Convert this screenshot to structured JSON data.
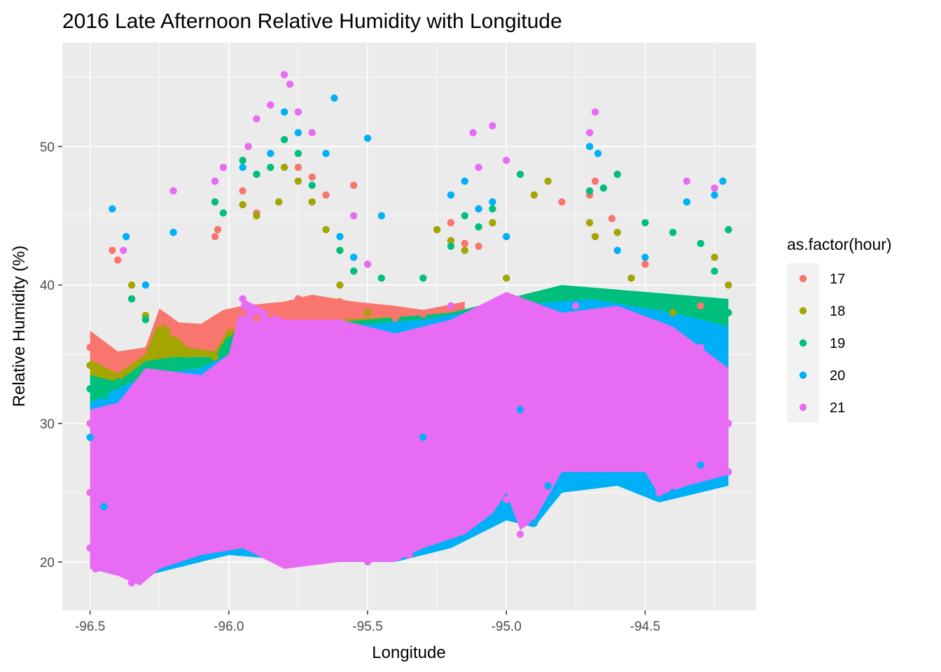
{
  "chart_data": {
    "type": "scatter",
    "title": "2016 Late Afternoon Relative Humidity with Longitude",
    "xlabel": "Longitude",
    "ylabel": "Relative Humidity (%)",
    "xlim": [
      -96.6,
      -94.1
    ],
    "ylim": [
      16.5,
      57.5
    ],
    "x_ticks": [
      -96.5,
      -96.0,
      -95.5,
      -95.0,
      -94.5
    ],
    "x_tick_labels": [
      "-96.5",
      "-96.0",
      "-95.5",
      "-95.0",
      "-94.5"
    ],
    "y_ticks": [
      20,
      30,
      40,
      50
    ],
    "y_tick_labels": [
      "20",
      "30",
      "40",
      "50"
    ],
    "grid": true,
    "legend": {
      "title": "as.factor(hour)",
      "position": "right"
    },
    "series": [
      {
        "name": "17",
        "color": "#F8766D",
        "points": [
          [
            -96.5,
            35.5
          ],
          [
            -96.45,
            34.8
          ],
          [
            -96.4,
            34.0
          ],
          [
            -96.25,
            37.2
          ],
          [
            -96.2,
            36.5
          ],
          [
            -96.15,
            35.8
          ],
          [
            -96.1,
            36.4
          ],
          [
            -96.05,
            36.8
          ],
          [
            -96.0,
            37.8
          ],
          [
            -95.95,
            38.0
          ],
          [
            -95.9,
            37.6
          ],
          [
            -95.85,
            37.9
          ],
          [
            -95.8,
            38.4
          ],
          [
            -95.75,
            39.0
          ],
          [
            -95.7,
            38.6
          ],
          [
            -95.6,
            38.8
          ],
          [
            -95.5,
            38.2
          ],
          [
            -95.4,
            37.6
          ],
          [
            -95.3,
            37.9
          ],
          [
            -95.2,
            38.4
          ],
          [
            -96.42,
            42.5
          ],
          [
            -96.4,
            41.8
          ],
          [
            -96.05,
            43.5
          ],
          [
            -96.04,
            44.0
          ],
          [
            -95.95,
            46.8
          ],
          [
            -95.9,
            45.2
          ],
          [
            -95.82,
            46.0
          ],
          [
            -95.75,
            48.5
          ],
          [
            -95.7,
            47.8
          ],
          [
            -95.65,
            46.5
          ],
          [
            -95.55,
            47.2
          ],
          [
            -95.2,
            44.5
          ],
          [
            -95.15,
            43.0
          ],
          [
            -95.1,
            42.8
          ],
          [
            -94.8,
            46.0
          ],
          [
            -94.7,
            46.5
          ],
          [
            -94.68,
            47.5
          ],
          [
            -94.62,
            44.8
          ],
          [
            -94.5,
            41.5
          ],
          [
            -94.3,
            38.5
          ]
        ]
      },
      {
        "name": "18",
        "color": "#A3A500",
        "points": [
          [
            -96.5,
            34.2
          ],
          [
            -96.45,
            33.5
          ],
          [
            -96.4,
            33.2
          ],
          [
            -96.35,
            40.0
          ],
          [
            -96.3,
            37.8
          ],
          [
            -96.25,
            36.5
          ],
          [
            -96.15,
            35.0
          ],
          [
            -96.05,
            34.8
          ],
          [
            -96.0,
            36.5
          ],
          [
            -95.95,
            45.8
          ],
          [
            -95.9,
            45.0
          ],
          [
            -95.82,
            46.0
          ],
          [
            -95.8,
            48.5
          ],
          [
            -95.75,
            47.5
          ],
          [
            -95.7,
            46.0
          ],
          [
            -95.65,
            44.0
          ],
          [
            -95.6,
            40.0
          ],
          [
            -95.5,
            38.0
          ],
          [
            -95.25,
            44.0
          ],
          [
            -95.2,
            43.2
          ],
          [
            -95.15,
            42.5
          ],
          [
            -95.05,
            44.5
          ],
          [
            -95.0,
            40.5
          ],
          [
            -94.9,
            46.5
          ],
          [
            -94.85,
            47.5
          ],
          [
            -94.7,
            44.5
          ],
          [
            -94.68,
            43.5
          ],
          [
            -94.6,
            43.8
          ],
          [
            -94.55,
            40.5
          ],
          [
            -94.4,
            38.0
          ],
          [
            -94.25,
            42.0
          ],
          [
            -94.2,
            40.0
          ]
        ]
      },
      {
        "name": "19",
        "color": "#00BF7D",
        "points": [
          [
            -96.5,
            32.5
          ],
          [
            -96.45,
            32.0
          ],
          [
            -96.4,
            33.0
          ],
          [
            -96.35,
            39.0
          ],
          [
            -96.3,
            37.5
          ],
          [
            -96.2,
            34.5
          ],
          [
            -96.05,
            46.0
          ],
          [
            -96.02,
            45.2
          ],
          [
            -95.95,
            49.0
          ],
          [
            -95.9,
            48.0
          ],
          [
            -95.85,
            48.5
          ],
          [
            -95.8,
            50.5
          ],
          [
            -95.75,
            49.5
          ],
          [
            -95.7,
            47.2
          ],
          [
            -95.6,
            42.5
          ],
          [
            -95.55,
            41.0
          ],
          [
            -95.45,
            40.5
          ],
          [
            -95.3,
            40.5
          ],
          [
            -95.2,
            42.8
          ],
          [
            -95.15,
            45.0
          ],
          [
            -95.1,
            44.2
          ],
          [
            -95.05,
            45.5
          ],
          [
            -94.95,
            48.0
          ],
          [
            -94.7,
            46.8
          ],
          [
            -94.65,
            47.0
          ],
          [
            -94.6,
            48.0
          ],
          [
            -94.5,
            44.5
          ],
          [
            -94.4,
            43.8
          ],
          [
            -94.3,
            43.0
          ],
          [
            -94.25,
            41.0
          ],
          [
            -94.2,
            44.0
          ],
          [
            -94.2,
            38.0
          ]
        ]
      },
      {
        "name": "20",
        "color": "#00B0F6",
        "points": [
          [
            -96.5,
            29.0
          ],
          [
            -96.45,
            24.0
          ],
          [
            -96.42,
            45.5
          ],
          [
            -96.37,
            43.5
          ],
          [
            -96.3,
            40.0
          ],
          [
            -96.2,
            43.8
          ],
          [
            -96.05,
            47.5
          ],
          [
            -95.95,
            48.5
          ],
          [
            -95.85,
            49.5
          ],
          [
            -95.8,
            52.5
          ],
          [
            -95.75,
            51.0
          ],
          [
            -95.65,
            49.5
          ],
          [
            -95.62,
            53.5
          ],
          [
            -95.6,
            43.5
          ],
          [
            -95.55,
            42.0
          ],
          [
            -95.5,
            50.6
          ],
          [
            -95.45,
            45.0
          ],
          [
            -95.3,
            29.0
          ],
          [
            -95.2,
            46.5
          ],
          [
            -95.15,
            47.5
          ],
          [
            -95.1,
            45.5
          ],
          [
            -95.05,
            46.0
          ],
          [
            -95.0,
            43.5
          ],
          [
            -94.95,
            31.0
          ],
          [
            -94.9,
            22.8
          ],
          [
            -94.85,
            25.5
          ],
          [
            -94.7,
            50.0
          ],
          [
            -94.67,
            49.5
          ],
          [
            -94.6,
            42.5
          ],
          [
            -94.5,
            42.0
          ],
          [
            -94.45,
            24.6
          ],
          [
            -94.4,
            25.0
          ],
          [
            -94.35,
            46.0
          ],
          [
            -94.3,
            27.0
          ],
          [
            -94.25,
            46.5
          ],
          [
            -94.22,
            47.5
          ],
          [
            -94.2,
            26.5
          ]
        ]
      },
      {
        "name": "21",
        "color": "#E76BF3",
        "points": [
          [
            -96.5,
            21.0
          ],
          [
            -96.5,
            25.0
          ],
          [
            -96.5,
            30.0
          ],
          [
            -96.48,
            19.5
          ],
          [
            -96.45,
            27.0
          ],
          [
            -96.4,
            31.0
          ],
          [
            -96.38,
            42.5
          ],
          [
            -96.35,
            18.5
          ],
          [
            -96.32,
            19.5
          ],
          [
            -96.3,
            25.5
          ],
          [
            -96.25,
            20.5
          ],
          [
            -96.2,
            46.8
          ],
          [
            -96.2,
            26.5
          ],
          [
            -96.15,
            30.5
          ],
          [
            -96.1,
            21.5
          ],
          [
            -96.05,
            47.5
          ],
          [
            -96.02,
            48.5
          ],
          [
            -96.0,
            25.0
          ],
          [
            -95.95,
            39.0
          ],
          [
            -95.93,
            50.0
          ],
          [
            -95.9,
            52.0
          ],
          [
            -95.85,
            53.0
          ],
          [
            -95.8,
            55.2
          ],
          [
            -95.78,
            54.5
          ],
          [
            -95.75,
            52.5
          ],
          [
            -95.7,
            51.0
          ],
          [
            -95.75,
            23.0
          ],
          [
            -95.7,
            30.0
          ],
          [
            -95.6,
            31.5
          ],
          [
            -95.55,
            45.0
          ],
          [
            -95.5,
            41.5
          ],
          [
            -95.5,
            20.0
          ],
          [
            -95.4,
            32.0
          ],
          [
            -95.35,
            20.5
          ],
          [
            -95.3,
            34.0
          ],
          [
            -95.25,
            22.0
          ],
          [
            -95.2,
            38.5
          ],
          [
            -95.15,
            36.0
          ],
          [
            -95.12,
            51.0
          ],
          [
            -95.1,
            48.5
          ],
          [
            -95.05,
            51.5
          ],
          [
            -95.0,
            49.0
          ],
          [
            -95.0,
            24.5
          ],
          [
            -94.95,
            22.0
          ],
          [
            -94.9,
            37.0
          ],
          [
            -94.85,
            30.0
          ],
          [
            -94.75,
            38.5
          ],
          [
            -94.7,
            51.0
          ],
          [
            -94.68,
            52.5
          ],
          [
            -94.6,
            35.0
          ],
          [
            -94.55,
            29.0
          ],
          [
            -94.45,
            25.0
          ],
          [
            -94.4,
            33.5
          ],
          [
            -94.35,
            47.5
          ],
          [
            -94.3,
            35.5
          ],
          [
            -94.25,
            47.0
          ],
          [
            -94.2,
            30.0
          ],
          [
            -94.2,
            26.5
          ]
        ]
      }
    ]
  }
}
